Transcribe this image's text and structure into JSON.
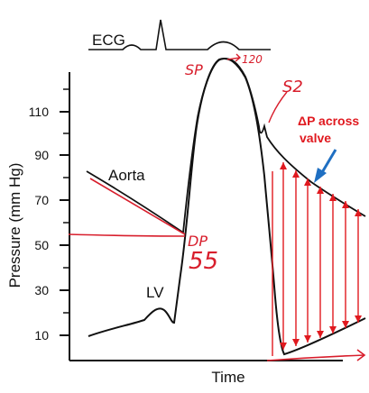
{
  "ecg": {
    "label": "ECG"
  },
  "axes": {
    "ylabel": "Pressure (mm Hg)",
    "xlabel": "Time",
    "yticks": [
      "110",
      "90",
      "70",
      "50",
      "30",
      "10"
    ]
  },
  "curves": {
    "aorta_label": "Aorta",
    "lv_label": "LV"
  },
  "annotations": {
    "sp": "SP",
    "sp_value": "120",
    "s2": "S2",
    "dp": "DP",
    "dp_value": "55",
    "delta_p_line1": "ΔP across",
    "delta_p_line2": "valve"
  },
  "colors": {
    "ink": "#111111",
    "handwriting": "#d81e2c",
    "annotation": "#e0191f",
    "arrow_blue": "#1f6fc2"
  }
}
